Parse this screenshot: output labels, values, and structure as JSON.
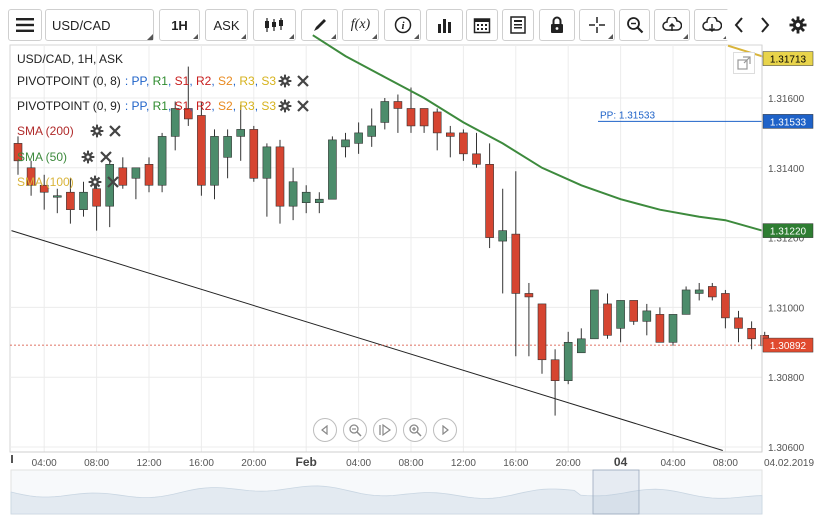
{
  "toolbar": {
    "symbol": "USD/CAD",
    "timeframe": "1H",
    "price_side": "ASK",
    "buttons": [
      "menu-icon",
      "candles-icon",
      "draw-icon",
      "function-icon",
      "info-icon",
      "volume-icon",
      "calendar-icon",
      "news-icon",
      "lock-icon",
      "crosshair-icon",
      "zoom-icon",
      "upload-icon",
      "download-icon",
      "prev-icon",
      "next-icon",
      "settings-icon"
    ],
    "fx_label": "f(x)"
  },
  "legend": {
    "title": "USD/CAD, 1H, ASK",
    "pivot1_name": "PIVOTPOINT (0, 8)",
    "pivot2_name": "PIVOTPOINT (0, 9)",
    "pivot_parts": [
      {
        "text": ": PP",
        "color": "#1e62c8"
      },
      {
        "text": ", ",
        "color": "#1e62c8"
      },
      {
        "text": "R1",
        "color": "#2e8b2e"
      },
      {
        "text": ", ",
        "color": "#1e62c8"
      },
      {
        "text": "S1",
        "color": "#c81e1e"
      },
      {
        "text": ", ",
        "color": "#1e62c8"
      },
      {
        "text": "R2",
        "color": "#c81e1e"
      },
      {
        "text": ", ",
        "color": "#1e62c8"
      },
      {
        "text": "S2",
        "color": "#e8891e"
      },
      {
        "text": ", ",
        "color": "#1e62c8"
      },
      {
        "text": "R3",
        "color": "#d6b21c"
      },
      {
        "text": ", ",
        "color": "#1e62c8"
      },
      {
        "text": "S3",
        "color": "#d6b21c"
      }
    ],
    "sma200": "SMA (200)",
    "sma50": "SMA (50)",
    "sma100": "SMA (100)",
    "colors": {
      "sma200": "#b02a2a",
      "sma50": "#3d8a3d",
      "sma100": "#d9b43a"
    }
  },
  "chart_data": {
    "type": "candlestick",
    "y_ticks": [
      1.306,
      1.308,
      1.31,
      1.312,
      1.314,
      1.316
    ],
    "y_tick_labels": [
      "1.30600",
      "1.30800",
      "1.31000",
      "1.31200",
      "1.31400",
      "1.31600"
    ],
    "ylim": [
      1.306,
      1.3175
    ],
    "x_ticks": [
      {
        "label": "04:00",
        "bold": false,
        "slot": 2
      },
      {
        "label": "08:00",
        "bold": false,
        "slot": 6
      },
      {
        "label": "12:00",
        "bold": false,
        "slot": 10
      },
      {
        "label": "16:00",
        "bold": false,
        "slot": 14
      },
      {
        "label": "20:00",
        "bold": false,
        "slot": 18
      },
      {
        "label": "Feb",
        "bold": true,
        "slot": 22
      },
      {
        "label": "04:00",
        "bold": false,
        "slot": 26
      },
      {
        "label": "08:00",
        "bold": false,
        "slot": 30
      },
      {
        "label": "12:00",
        "bold": false,
        "slot": 34
      },
      {
        "label": "16:00",
        "bold": false,
        "slot": 38
      },
      {
        "label": "20:00",
        "bold": false,
        "slot": 42
      },
      {
        "label": "04",
        "bold": true,
        "slot": 46
      },
      {
        "label": "04:00",
        "bold": false,
        "slot": 50
      },
      {
        "label": "08:00",
        "bold": false,
        "slot": 54
      }
    ],
    "x_end_label": "04.02.2019",
    "candles": [
      {
        "o": 1.3147,
        "h": 1.3149,
        "l": 1.3138,
        "c": 1.3142
      },
      {
        "o": 1.314,
        "h": 1.3142,
        "l": 1.3132,
        "c": 1.3135
      },
      {
        "o": 1.3135,
        "h": 1.3138,
        "l": 1.3128,
        "c": 1.3133
      },
      {
        "o": 1.3132,
        "h": 1.3134,
        "l": 1.3127,
        "c": 1.3132
      },
      {
        "o": 1.3133,
        "h": 1.3137,
        "l": 1.3124,
        "c": 1.3128
      },
      {
        "o": 1.3128,
        "h": 1.3136,
        "l": 1.3126,
        "c": 1.3133
      },
      {
        "o": 1.3134,
        "h": 1.3137,
        "l": 1.3122,
        "c": 1.3129
      },
      {
        "o": 1.3129,
        "h": 1.3142,
        "l": 1.3123,
        "c": 1.3141
      },
      {
        "o": 1.314,
        "h": 1.3143,
        "l": 1.3134,
        "c": 1.3135
      },
      {
        "o": 1.3137,
        "h": 1.314,
        "l": 1.3131,
        "c": 1.314
      },
      {
        "o": 1.3141,
        "h": 1.3143,
        "l": 1.3133,
        "c": 1.3135
      },
      {
        "o": 1.3135,
        "h": 1.315,
        "l": 1.3133,
        "c": 1.3149
      },
      {
        "o": 1.3149,
        "h": 1.3159,
        "l": 1.3145,
        "c": 1.3157
      },
      {
        "o": 1.3157,
        "h": 1.3169,
        "l": 1.3152,
        "c": 1.3154
      },
      {
        "o": 1.3155,
        "h": 1.3159,
        "l": 1.3132,
        "c": 1.3135
      },
      {
        "o": 1.3135,
        "h": 1.3151,
        "l": 1.3131,
        "c": 1.3149
      },
      {
        "o": 1.3143,
        "h": 1.3151,
        "l": 1.3137,
        "c": 1.3149
      },
      {
        "o": 1.3149,
        "h": 1.3158,
        "l": 1.3142,
        "c": 1.3151
      },
      {
        "o": 1.3151,
        "h": 1.3152,
        "l": 1.3136,
        "c": 1.3137
      },
      {
        "o": 1.3137,
        "h": 1.3147,
        "l": 1.3126,
        "c": 1.3146
      },
      {
        "o": 1.3146,
        "h": 1.3148,
        "l": 1.3124,
        "c": 1.3129
      },
      {
        "o": 1.3129,
        "h": 1.314,
        "l": 1.3125,
        "c": 1.3136
      },
      {
        "o": 1.313,
        "h": 1.3135,
        "l": 1.3127,
        "c": 1.3133
      },
      {
        "o": 1.313,
        "h": 1.3133,
        "l": 1.3127,
        "c": 1.3131
      },
      {
        "o": 1.3131,
        "h": 1.3149,
        "l": 1.3131,
        "c": 1.3148
      },
      {
        "o": 1.3146,
        "h": 1.315,
        "l": 1.3143,
        "c": 1.3148
      },
      {
        "o": 1.3147,
        "h": 1.3153,
        "l": 1.3144,
        "c": 1.315
      },
      {
        "o": 1.3149,
        "h": 1.3157,
        "l": 1.3146,
        "c": 1.3152
      },
      {
        "o": 1.3153,
        "h": 1.316,
        "l": 1.3151,
        "c": 1.3159
      },
      {
        "o": 1.3159,
        "h": 1.3161,
        "l": 1.315,
        "c": 1.3157
      },
      {
        "o": 1.3157,
        "h": 1.3163,
        "l": 1.315,
        "c": 1.3152
      },
      {
        "o": 1.3157,
        "h": 1.3157,
        "l": 1.315,
        "c": 1.3152
      },
      {
        "o": 1.3156,
        "h": 1.3157,
        "l": 1.3145,
        "c": 1.315
      },
      {
        "o": 1.315,
        "h": 1.3152,
        "l": 1.3143,
        "c": 1.3149
      },
      {
        "o": 1.315,
        "h": 1.3151,
        "l": 1.3142,
        "c": 1.3144
      },
      {
        "o": 1.3144,
        "h": 1.315,
        "l": 1.314,
        "c": 1.3141
      },
      {
        "o": 1.3141,
        "h": 1.3147,
        "l": 1.3117,
        "c": 1.312
      },
      {
        "o": 1.3119,
        "h": 1.3134,
        "l": 1.3104,
        "c": 1.3122
      },
      {
        "o": 1.3121,
        "h": 1.3139,
        "l": 1.3086,
        "c": 1.3104
      },
      {
        "o": 1.3104,
        "h": 1.3107,
        "l": 1.3086,
        "c": 1.3103
      },
      {
        "o": 1.3101,
        "h": 1.3101,
        "l": 1.3081,
        "c": 1.3085
      },
      {
        "o": 1.3085,
        "h": 1.3088,
        "l": 1.3069,
        "c": 1.3079
      },
      {
        "o": 1.3079,
        "h": 1.3093,
        "l": 1.3078,
        "c": 1.309
      },
      {
        "o": 1.3087,
        "h": 1.3094,
        "l": 1.3087,
        "c": 1.3091
      },
      {
        "o": 1.3091,
        "h": 1.3105,
        "l": 1.3091,
        "c": 1.3105
      },
      {
        "o": 1.3101,
        "h": 1.3104,
        "l": 1.3091,
        "c": 1.3092
      },
      {
        "o": 1.3094,
        "h": 1.3102,
        "l": 1.309,
        "c": 1.3102
      },
      {
        "o": 1.3102,
        "h": 1.3102,
        "l": 1.3095,
        "c": 1.3096
      },
      {
        "o": 1.3096,
        "h": 1.3101,
        "l": 1.3092,
        "c": 1.3099
      },
      {
        "o": 1.3098,
        "h": 1.31,
        "l": 1.309,
        "c": 1.309
      },
      {
        "o": 1.309,
        "h": 1.3098,
        "l": 1.3089,
        "c": 1.3098
      },
      {
        "o": 1.3098,
        "h": 1.3106,
        "l": 1.3098,
        "c": 1.3105
      },
      {
        "o": 1.3104,
        "h": 1.3107,
        "l": 1.3102,
        "c": 1.3105
      },
      {
        "o": 1.3106,
        "h": 1.3107,
        "l": 1.3102,
        "c": 1.3103
      },
      {
        "o": 1.3104,
        "h": 1.3105,
        "l": 1.3094,
        "c": 1.3097
      },
      {
        "o": 1.3097,
        "h": 1.3099,
        "l": 1.309,
        "c": 1.3094
      },
      {
        "o": 1.3094,
        "h": 1.3096,
        "l": 1.3088,
        "c": 1.3091
      },
      {
        "o": 1.3092,
        "h": 1.3093,
        "l": 1.3088,
        "c": 1.3089
      }
    ],
    "sma50_points": [
      {
        "slot": 22.5,
        "v": 1.3178
      },
      {
        "slot": 25,
        "v": 1.3172
      },
      {
        "slot": 28,
        "v": 1.3166
      },
      {
        "slot": 31,
        "v": 1.316
      },
      {
        "slot": 34,
        "v": 1.3153
      },
      {
        "slot": 37,
        "v": 1.3147
      },
      {
        "slot": 40,
        "v": 1.314
      },
      {
        "slot": 43,
        "v": 1.3135
      },
      {
        "slot": 46,
        "v": 1.3131
      },
      {
        "slot": 49,
        "v": 1.3128
      },
      {
        "slot": 52,
        "v": 1.3126
      },
      {
        "slot": 54,
        "v": 1.3125
      },
      {
        "slot": 56.8,
        "v": 1.3122
      }
    ],
    "sma100_points": [
      {
        "slot": 54.2,
        "v": 1.3175
      },
      {
        "slot": 57.2,
        "v": 1.31715
      }
    ],
    "trendline": {
      "from": {
        "slot": -0.5,
        "v": 1.3122
      },
      "to": {
        "slot": 53.8,
        "v": 1.3059
      }
    },
    "pp_line": {
      "label": "PP: 1.31533",
      "value": 1.31533
    },
    "price_tags": [
      {
        "value": 1.31713,
        "text": "1.31713",
        "bg": "#e8d44b",
        "fg": "#000",
        "y": 1.31713
      },
      {
        "value": 1.31533,
        "text": "1.31533",
        "bg": "#1e62c8",
        "fg": "#fff",
        "y": 1.31533
      },
      {
        "value": 1.3122,
        "text": "1.31220",
        "bg": "#2e7d32",
        "fg": "#fff",
        "y": 1.3122
      },
      {
        "value": 1.30892,
        "text": "1.30892",
        "bg": "#e04a2f",
        "fg": "#fff",
        "y": 1.30892
      }
    ],
    "current_price": 1.30892,
    "colors": {
      "up": "#4c8c6b",
      "down": "#d64531",
      "sma50": "#3d8a3d",
      "sma100": "#d9b43a",
      "pp": "#1e62c8",
      "trend": "#222"
    }
  }
}
